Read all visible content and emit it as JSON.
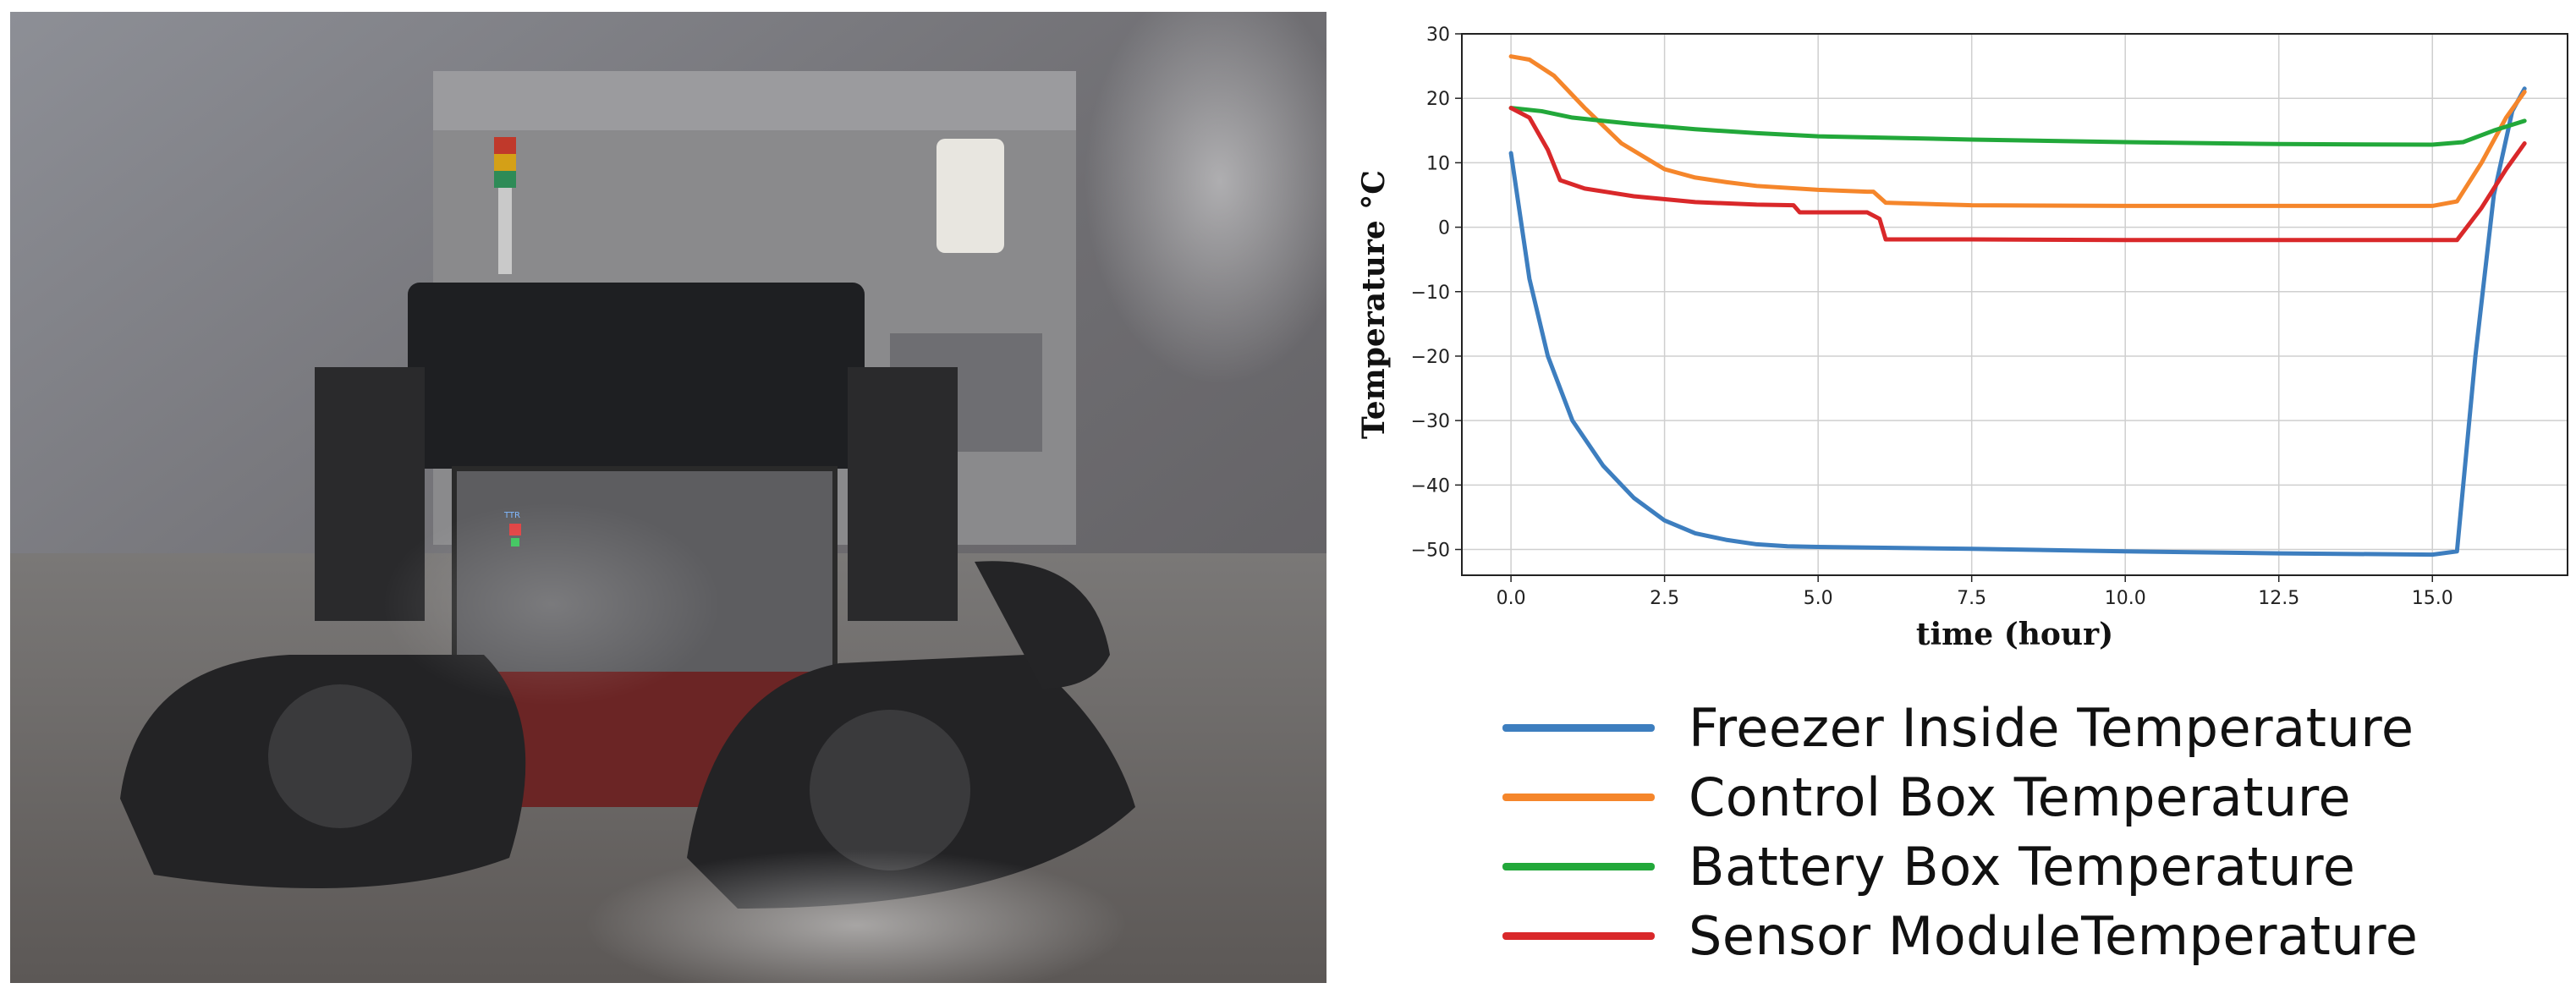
{
  "photo": {
    "description_icon": "tracked-robot-photo",
    "panel_label": "TTR"
  },
  "chart_data": {
    "type": "line",
    "title": "",
    "xlabel": "time (hour)",
    "ylabel": "Temperature °C",
    "xlim": [
      -0.8,
      17.2
    ],
    "ylim": [
      -54,
      30
    ],
    "xticks": [
      "0.0",
      "2.5",
      "5.0",
      "7.5",
      "10.0",
      "12.5",
      "15.0"
    ],
    "xtick_values": [
      0,
      2.5,
      5,
      7.5,
      10,
      12.5,
      15
    ],
    "yticks": [
      "30",
      "20",
      "10",
      "0",
      "−10",
      "−20",
      "−30",
      "−40",
      "−50"
    ],
    "ytick_values": [
      30,
      20,
      10,
      0,
      -10,
      -20,
      -30,
      -40,
      -50
    ],
    "grid": true,
    "legend_position": "below",
    "series": [
      {
        "name": "Freezer Inside Temperature",
        "color": "#3d7ebf",
        "x": [
          0,
          0.3,
          0.6,
          1.0,
          1.5,
          2.0,
          2.5,
          3.0,
          3.5,
          4.0,
          4.5,
          5.0,
          7.5,
          10.0,
          12.5,
          15.0,
          15.4,
          15.7,
          16.0,
          16.3,
          16.5
        ],
        "y": [
          11.5,
          -8,
          -20,
          -30,
          -37,
          -42,
          -45.5,
          -47.5,
          -48.5,
          -49.2,
          -49.5,
          -49.6,
          -49.9,
          -50.3,
          -50.6,
          -50.8,
          -50.3,
          -20,
          5,
          18,
          21.5
        ]
      },
      {
        "name": "Control Box Temperature",
        "color": "#f5862b",
        "x": [
          0,
          0.3,
          0.7,
          1.2,
          1.8,
          2.5,
          3.0,
          3.5,
          4.0,
          5.0,
          5.8,
          5.9,
          6.1,
          7.5,
          10.0,
          12.5,
          15.0,
          15.4,
          15.8,
          16.2,
          16.5
        ],
        "y": [
          26.5,
          26,
          23.5,
          18.5,
          13,
          9,
          7.7,
          7,
          6.4,
          5.8,
          5.5,
          5.5,
          3.8,
          3.4,
          3.3,
          3.3,
          3.3,
          4,
          10,
          17,
          21
        ]
      },
      {
        "name": "Battery Box Temperature",
        "color": "#22a83a",
        "x": [
          0,
          0.5,
          1.0,
          2.0,
          3.0,
          4.0,
          5.0,
          7.5,
          10.0,
          12.5,
          15.0,
          15.5,
          16.0,
          16.5
        ],
        "y": [
          18.5,
          18,
          17,
          16,
          15.2,
          14.6,
          14.1,
          13.6,
          13.2,
          12.9,
          12.8,
          13.2,
          15,
          16.5
        ]
      },
      {
        "name": "Sensor ModuleTemperature",
        "color": "#d9282a",
        "x": [
          0,
          0.3,
          0.6,
          0.8,
          1.2,
          2.0,
          3.0,
          4.0,
          4.6,
          4.7,
          5.0,
          5.8,
          6.0,
          6.1,
          7.5,
          10.0,
          12.5,
          15.0,
          15.4,
          15.8,
          16.2,
          16.5
        ],
        "y": [
          18.5,
          17,
          12,
          7.3,
          6,
          4.8,
          3.9,
          3.5,
          3.4,
          2.3,
          2.3,
          2.3,
          1.3,
          -1.9,
          -1.9,
          -2,
          -2,
          -2,
          -2,
          3,
          9,
          13
        ]
      }
    ]
  }
}
